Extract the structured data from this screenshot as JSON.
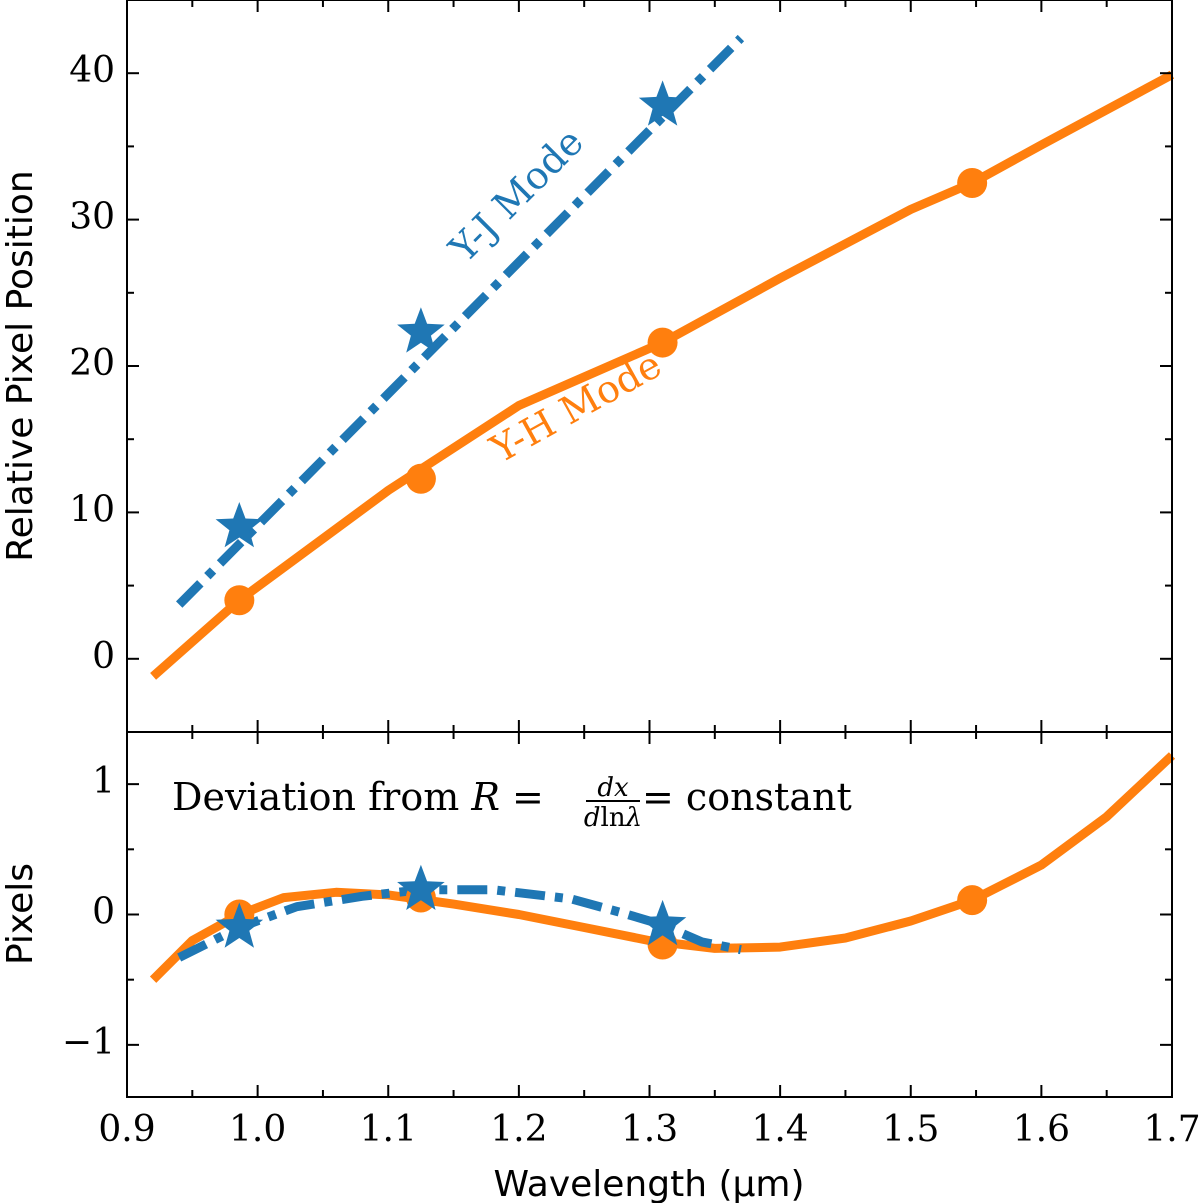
{
  "chart_data": [
    {
      "type": "line",
      "name": "top-panel",
      "ylabel": "Relative Pixel Position",
      "xlim": [
        0.9,
        1.7
      ],
      "ylim": [
        -5,
        45
      ],
      "yticks": [
        0,
        10,
        20,
        30,
        40
      ],
      "series": [
        {
          "name": "Y-H Mode",
          "color": "#ff7f0e",
          "style": "solid",
          "line": {
            "x": [
              0.92,
              0.986,
              1.1,
              1.2,
              1.31,
              1.4,
              1.5,
              1.547,
              1.6,
              1.7
            ],
            "y": [
              -1.2,
              4.0,
              11.5,
              17.3,
              21.6,
              26.0,
              30.7,
              32.5,
              35.1,
              39.9
            ]
          },
          "markers": {
            "shape": "circle",
            "x": [
              0.986,
              1.125,
              1.31,
              1.547
            ],
            "y": [
              4.0,
              12.3,
              21.6,
              32.5
            ]
          }
        },
        {
          "name": "Y-J Mode",
          "color": "#1f77b4",
          "style": "dashdot",
          "line": {
            "x": [
              0.94,
              1.37
            ],
            "y": [
              3.7,
              42.4
            ]
          },
          "markers": {
            "shape": "star",
            "x": [
              0.986,
              1.125,
              1.31
            ],
            "y": [
              9.0,
              22.3,
              37.8
            ]
          }
        }
      ],
      "annotations": [
        {
          "text": "Y-J Mode",
          "color": "#1f77b4",
          "x": 1.2,
          "y": 31.5,
          "rotation_deg": -45
        },
        {
          "text": "Y-H Mode",
          "color": "#ff7f0e",
          "x": 1.245,
          "y": 17.0,
          "rotation_deg": -29
        }
      ]
    },
    {
      "type": "line",
      "name": "bottom-panel",
      "ylabel": "Pixels",
      "xlabel": "Wavelength (μm)",
      "xlim": [
        0.9,
        1.7
      ],
      "ylim": [
        -1.4,
        1.4
      ],
      "yticks": [
        1,
        0,
        -1
      ],
      "ytick_labels": [
        "1",
        "0",
        "−1"
      ],
      "xticks": [
        0.9,
        1.0,
        1.1,
        1.2,
        1.3,
        1.4,
        1.5,
        1.6,
        1.7
      ],
      "xtick_labels": [
        "0.9",
        "1.0",
        "1.1",
        "1.2",
        "1.3",
        "1.4",
        "1.5",
        "1.6",
        "1.7"
      ],
      "title_annotation": {
        "prefix": "Deviation from ",
        "var": "R",
        "eq": " = ",
        "frac_num": "dx",
        "frac_den_d": "d",
        "frac_den_ln": "ln",
        "frac_den_lambda": "λ",
        "suffix": " = constant"
      },
      "series": [
        {
          "name": "Y-H Mode",
          "color": "#ff7f0e",
          "style": "solid",
          "line": {
            "x": [
              0.92,
              0.95,
              0.986,
              1.02,
              1.06,
              1.1,
              1.15,
              1.2,
              1.25,
              1.3,
              1.35,
              1.4,
              1.45,
              1.5,
              1.547,
              1.6,
              1.65,
              1.7
            ],
            "y": [
              -0.5,
              -0.2,
              0.0,
              0.13,
              0.17,
              0.15,
              0.08,
              0.0,
              -0.1,
              -0.2,
              -0.26,
              -0.25,
              -0.18,
              -0.05,
              0.11,
              0.38,
              0.75,
              1.22
            ]
          },
          "markers": {
            "shape": "circle",
            "x": [
              0.986,
              1.125,
              1.31,
              1.547
            ],
            "y": [
              0.0,
              0.13,
              -0.23,
              0.11
            ]
          }
        },
        {
          "name": "Y-J Mode",
          "color": "#1f77b4",
          "style": "dashdot",
          "line": {
            "x": [
              0.94,
              0.986,
              1.03,
              1.08,
              1.125,
              1.18,
              1.24,
              1.28,
              1.31,
              1.34,
              1.37
            ],
            "y": [
              -0.33,
              -0.1,
              0.06,
              0.14,
              0.19,
              0.19,
              0.12,
              0.01,
              -0.08,
              -0.21,
              -0.27
            ]
          },
          "markers": {
            "shape": "star",
            "x": [
              0.986,
              1.125,
              1.31
            ],
            "y": [
              -0.1,
              0.19,
              -0.08
            ]
          }
        }
      ]
    }
  ]
}
